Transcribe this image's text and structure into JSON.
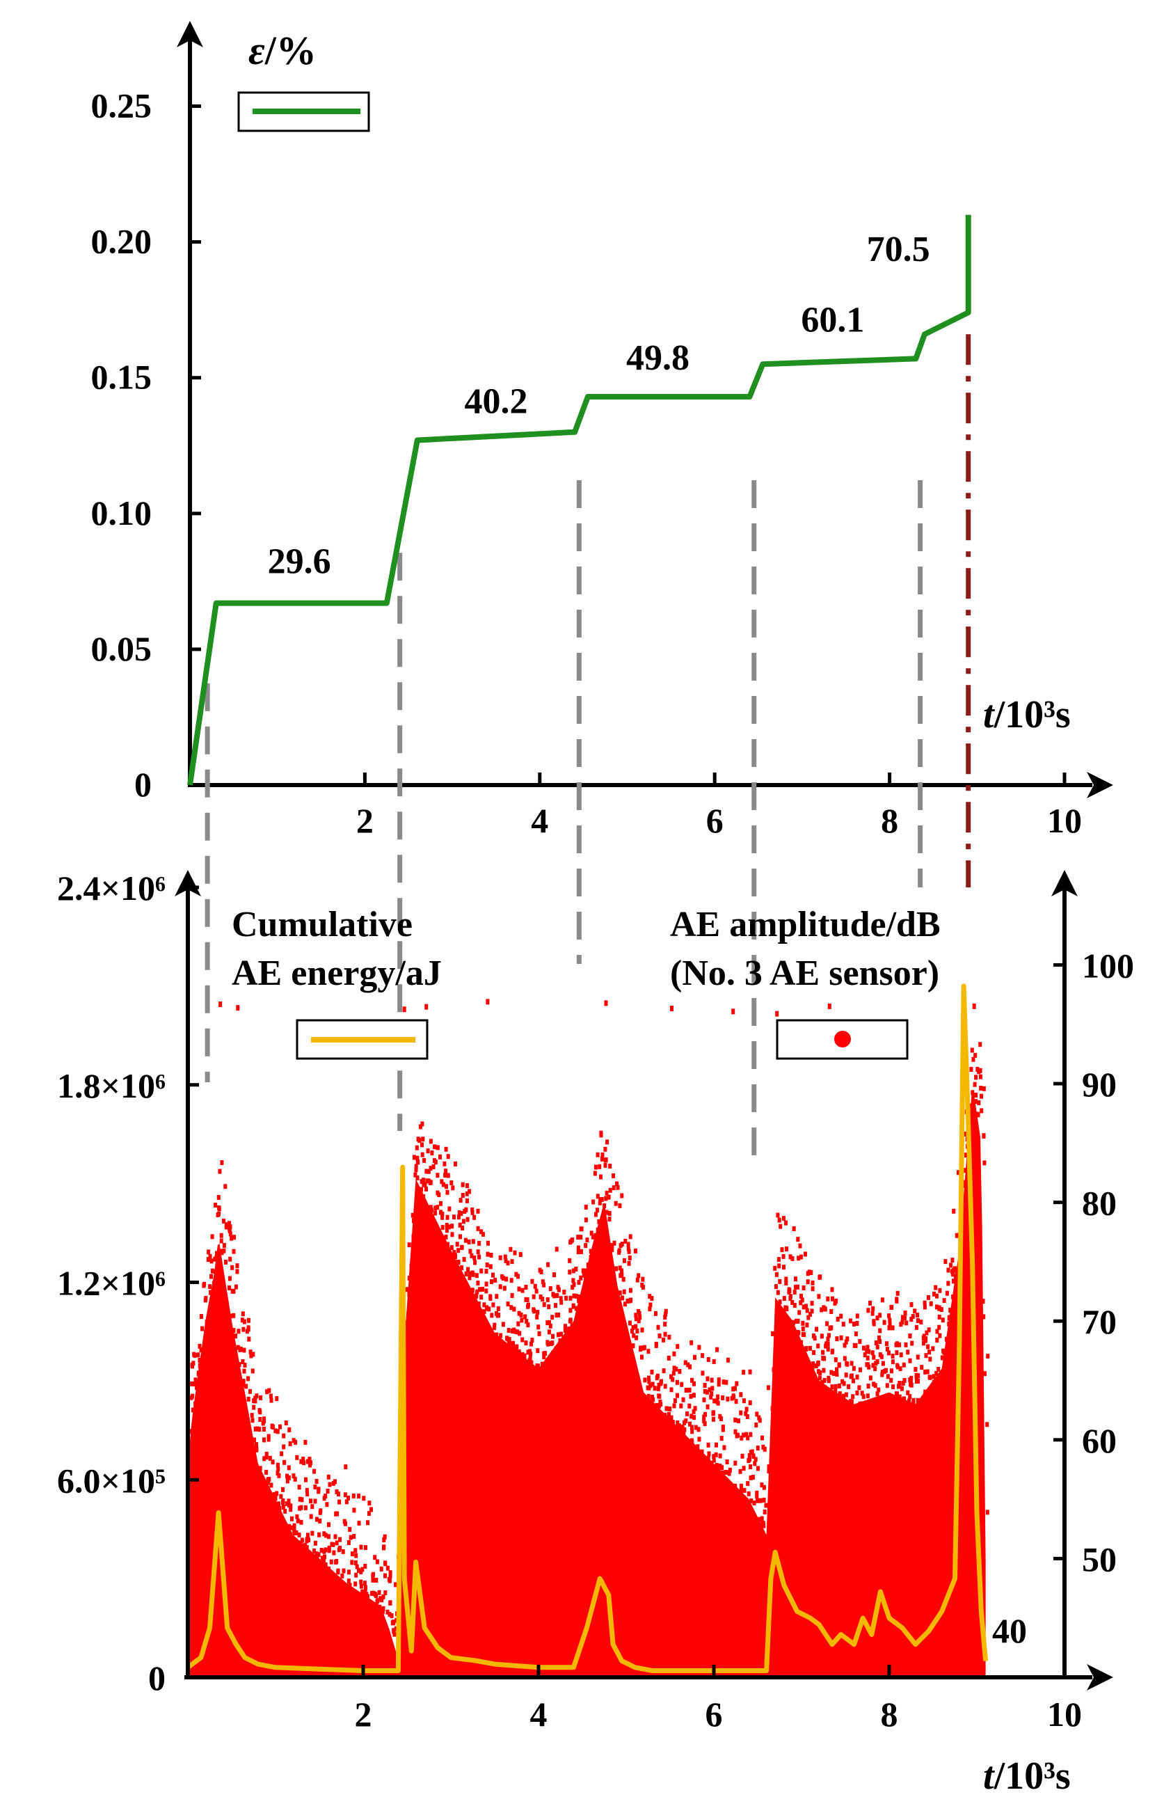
{
  "chart_data": [
    {
      "type": "line",
      "title": "",
      "ylabel_sym": "ε",
      "ylabel_unit": "/%",
      "xlabel_sym": "t",
      "xlabel_unit": "/10³s",
      "xlim": [
        0,
        10
      ],
      "ylim": [
        0,
        0.275
      ],
      "xticks": [
        2,
        4,
        6,
        8,
        10
      ],
      "xtick_labels": [
        "2",
        "4",
        "6",
        "8",
        "10"
      ],
      "yticks": [
        0,
        0.05,
        0.1,
        0.15,
        0.2,
        0.25
      ],
      "ytick_labels": [
        "0",
        "0.05",
        "0.10",
        "0.15",
        "0.20",
        "0.25"
      ],
      "series": [
        {
          "name": "strain",
          "color": "#1f8f1f",
          "x": [
            0,
            0.3,
            2.25,
            2.6,
            4.4,
            4.55,
            6.4,
            6.55,
            8.3,
            8.4,
            8.9,
            8.9
          ],
          "y": [
            0,
            0.067,
            0.067,
            0.127,
            0.13,
            0.143,
            0.143,
            0.155,
            0.157,
            0.166,
            0.174,
            0.21
          ]
        }
      ],
      "annotations": [
        {
          "text": "29.6",
          "x": 1.25,
          "y": 0.078
        },
        {
          "text": "40.2",
          "x": 3.5,
          "y": 0.137
        },
        {
          "text": "49.8",
          "x": 5.35,
          "y": 0.153
        },
        {
          "text": "60.1",
          "x": 7.35,
          "y": 0.167
        },
        {
          "text": "70.5",
          "x": 8.1,
          "y": 0.193
        }
      ],
      "stage_lines_x": [
        0.2,
        2.4,
        4.45,
        6.45,
        8.35
      ],
      "failure_line_x": 8.9,
      "stage_line_color": "#8a8a8a",
      "failure_line_color": "#8b1a1a"
    },
    {
      "type": "scatter",
      "title": "",
      "xlabel_sym": "t",
      "xlabel_unit": "/10³s",
      "xlim": [
        0,
        10
      ],
      "xticks": [
        2,
        4,
        6,
        8,
        10
      ],
      "xtick_labels": [
        "2",
        "4",
        "6",
        "8",
        "10"
      ],
      "left_axis": {
        "label": "Cumulative AE energy/aJ",
        "ylim": [
          0,
          2400000
        ],
        "ticks": [
          0,
          600000,
          1200000,
          1800000,
          2400000
        ],
        "tick_labels": [
          "0",
          "6.0×10⁵",
          "1.2×10⁶",
          "1.8×10⁶",
          "2.4×10⁶"
        ]
      },
      "right_axis": {
        "label": "AE amplitude/dB",
        "sublabel": "(No. 3 AE sensor)",
        "ylim": [
          40,
          108
        ],
        "ticks": [
          40,
          50,
          60,
          70,
          80,
          90,
          100
        ],
        "tick_labels": [
          "40",
          "50",
          "60",
          "70",
          "80",
          "90",
          "100"
        ]
      },
      "amplitude_color": "#ff0000",
      "energy_color": "#f5b800",
      "amplitude_envelope": {
        "x": [
          0,
          0.05,
          0.2,
          0.3,
          0.35,
          0.5,
          0.8,
          1.2,
          1.8,
          2.0,
          2.2,
          2.3,
          2.38,
          2.45,
          2.6,
          3.0,
          3.5,
          4.0,
          4.4,
          4.6,
          4.75,
          4.9,
          5.2,
          5.6,
          6.0,
          6.4,
          6.6,
          6.7,
          6.9,
          7.2,
          7.6,
          8.0,
          8.3,
          8.6,
          8.8,
          8.95,
          9.05,
          9.1
        ],
        "y_max": [
          66,
          68,
          76,
          80,
          84,
          78,
          66,
          61,
          58,
          56,
          54,
          50,
          48,
          70,
          88,
          84,
          77,
          75,
          78,
          84,
          88,
          81,
          73,
          70,
          68,
          66,
          60,
          80,
          78,
          74,
          71,
          73,
          72,
          74,
          84,
          98,
          92,
          60
        ],
        "y_dense": [
          58,
          62,
          70,
          74,
          77,
          70,
          58,
          52,
          48,
          47,
          46,
          44,
          42,
          66,
          82,
          76,
          69,
          66,
          70,
          76,
          80,
          73,
          64,
          61,
          58,
          55,
          52,
          72,
          70,
          65,
          63,
          64,
          63,
          66,
          76,
          90,
          85,
          50
        ]
      },
      "cumulative_energy": {
        "x": [
          0,
          0.15,
          0.25,
          0.35,
          0.45,
          0.55,
          0.65,
          0.8,
          1.0,
          1.5,
          2.0,
          2.3,
          2.4,
          2.45,
          2.47,
          2.55,
          2.6,
          2.7,
          2.85,
          3.0,
          3.3,
          3.5,
          4.0,
          4.4,
          4.55,
          4.7,
          4.8,
          4.85,
          4.95,
          5.1,
          5.3,
          6.0,
          6.6,
          6.65,
          6.7,
          6.8,
          6.95,
          7.1,
          7.2,
          7.35,
          7.45,
          7.6,
          7.7,
          7.8,
          7.9,
          8.0,
          8.15,
          8.3,
          8.45,
          8.6,
          8.75,
          8.8,
          8.85,
          8.9,
          8.95,
          9.0,
          9.05,
          9.1
        ],
        "y": [
          30000,
          60000,
          150000,
          500000,
          150000,
          100000,
          60000,
          40000,
          30000,
          25000,
          20000,
          20000,
          20000,
          1550000,
          300000,
          80000,
          350000,
          150000,
          90000,
          60000,
          50000,
          40000,
          30000,
          30000,
          150000,
          300000,
          250000,
          100000,
          50000,
          30000,
          20000,
          20000,
          20000,
          300000,
          380000,
          280000,
          200000,
          180000,
          160000,
          100000,
          130000,
          100000,
          180000,
          130000,
          260000,
          180000,
          150000,
          100000,
          140000,
          200000,
          300000,
          1000000,
          2100000,
          1700000,
          1250000,
          500000,
          200000,
          50000
        ]
      },
      "legend_energy_label": "Cumulative",
      "legend_energy_label2": "AE energy/aJ",
      "amplitude_floor_label": "40"
    }
  ]
}
